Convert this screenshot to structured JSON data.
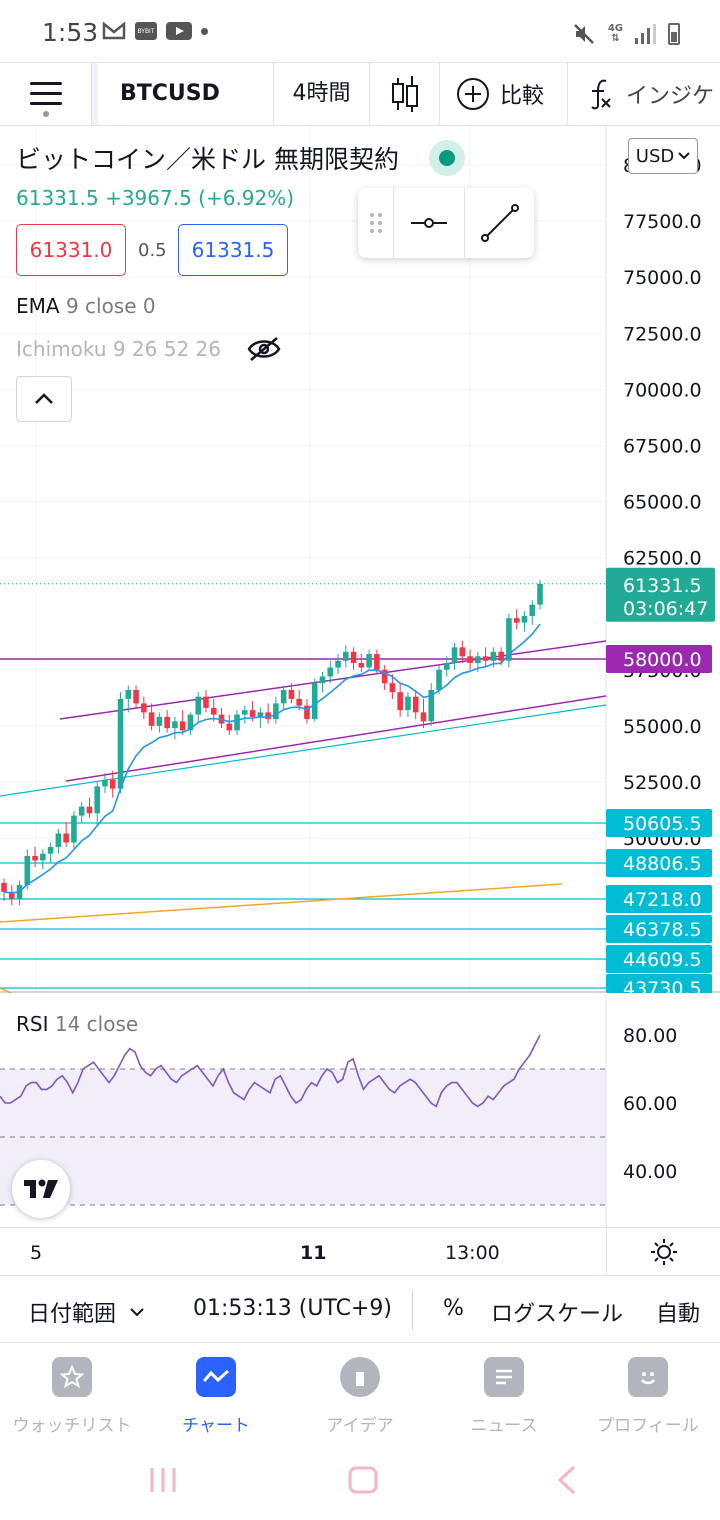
{
  "status_bar": {
    "time": "1:53",
    "net_top": "4G",
    "net_bottom": "⇅"
  },
  "toolbar": {
    "symbol": "BTCUSD",
    "interval": "4時間",
    "compare_label": "比較",
    "indicators_label": "インジケ"
  },
  "legend": {
    "title": "ビットコイン／米ドル 無期限契約",
    "price_line": "61331.5 +3967.5 (+6.92%)",
    "bid": "61331.0",
    "spread": "0.5",
    "ask": "61331.5",
    "ema_name": "EMA",
    "ema_params": "9 close 0",
    "ichimoku": "Ichimoku 9 26 52 26"
  },
  "currency_button": "USD",
  "price_axis": {
    "ticks": [
      "80000.0",
      "77500.0",
      "75000.0",
      "72500.0",
      "70000.0",
      "67500.0",
      "65000.0",
      "62500.0",
      "57500.0",
      "55000.0",
      "52500.0",
      "50000.0"
    ],
    "current_price": "61331.5",
    "countdown": "03:06:47",
    "badges": [
      {
        "value": "58000.0",
        "color": "#9c27b0"
      },
      {
        "value": "50605.5",
        "color": "#00bcd4"
      },
      {
        "value": "48806.5",
        "color": "#00bcd4"
      },
      {
        "value": "47218.0",
        "color": "#00bcd4"
      },
      {
        "value": "46378.5",
        "color": "#00bcd4"
      },
      {
        "value": "44609.5",
        "color": "#00bcd4"
      },
      {
        "value": "43730.5",
        "color": "#00bcd4"
      }
    ]
  },
  "rsi": {
    "name": "RSI",
    "params": "14 close",
    "ticks": [
      "80.00",
      "60.00",
      "40.00"
    ]
  },
  "time_axis": {
    "labels": [
      "5",
      "11",
      "13:00"
    ]
  },
  "bottom_bar": {
    "date_range": "日付範囲",
    "time": "01:53:13 (UTC+9)",
    "percent": "%",
    "log_scale": "ログスケール",
    "auto": "自動"
  },
  "tabs": [
    {
      "label": "ウォッチリスト",
      "icon": "star-icon"
    },
    {
      "label": "チャート",
      "icon": "chart-icon"
    },
    {
      "label": "アイデア",
      "icon": "lightbulb-icon"
    },
    {
      "label": "ニュース",
      "icon": "news-icon"
    },
    {
      "label": "プロフィール",
      "icon": "smile-icon"
    }
  ],
  "colors": {
    "up": "#22ab94",
    "down": "#f23645",
    "ema": "#2196f3",
    "channel": "#9c27b0",
    "support": "#00bcd4",
    "trend": "#f5a623",
    "rsi_line": "#7e57c2",
    "accent": "#2962ff"
  },
  "chart_data": {
    "type": "candlestick",
    "symbol": "BTCUSD",
    "interval": "4時間",
    "y_range": [
      43000,
      80000
    ],
    "candles_ohlc_approx": [
      [
        48000,
        48200,
        47200,
        47600
      ],
      [
        47600,
        47900,
        47000,
        47300
      ],
      [
        47300,
        48100,
        47000,
        47900
      ],
      [
        47900,
        49500,
        47700,
        49200
      ],
      [
        49200,
        49600,
        48700,
        49000
      ],
      [
        49000,
        49500,
        48600,
        49300
      ],
      [
        49300,
        49800,
        48900,
        49600
      ],
      [
        49600,
        50400,
        49300,
        50200
      ],
      [
        50200,
        50700,
        49600,
        49800
      ],
      [
        49800,
        51200,
        49500,
        51000
      ],
      [
        51000,
        51600,
        50700,
        51400
      ],
      [
        51400,
        51800,
        50900,
        51100
      ],
      [
        51100,
        52500,
        50600,
        52300
      ],
      [
        52300,
        52900,
        52000,
        52600
      ],
      [
        52600,
        53000,
        51800,
        52200
      ],
      [
        52200,
        56500,
        52000,
        56200
      ],
      [
        56200,
        56800,
        55600,
        56600
      ],
      [
        56600,
        56800,
        55800,
        56000
      ],
      [
        56000,
        56300,
        55300,
        55600
      ],
      [
        55600,
        56000,
        54800,
        55000
      ],
      [
        55000,
        55600,
        54700,
        55400
      ],
      [
        55400,
        55700,
        54700,
        54900
      ],
      [
        54900,
        55400,
        54400,
        55200
      ],
      [
        55200,
        55700,
        54600,
        54800
      ],
      [
        54800,
        55600,
        54600,
        55500
      ],
      [
        55500,
        56500,
        55200,
        56300
      ],
      [
        56300,
        56600,
        55600,
        55800
      ],
      [
        55800,
        56200,
        55200,
        55500
      ],
      [
        55500,
        55800,
        54900,
        55100
      ],
      [
        55100,
        55500,
        54600,
        54800
      ],
      [
        54800,
        55700,
        54600,
        55500
      ],
      [
        55500,
        55900,
        55100,
        55700
      ],
      [
        55700,
        56100,
        55200,
        55400
      ],
      [
        55400,
        55800,
        54900,
        55600
      ],
      [
        55600,
        56000,
        55100,
        55300
      ],
      [
        55300,
        56300,
        55100,
        56000
      ],
      [
        56000,
        56800,
        55700,
        56600
      ],
      [
        56600,
        56900,
        56000,
        56200
      ],
      [
        56200,
        56600,
        55700,
        55900
      ],
      [
        55900,
        56200,
        55100,
        55300
      ],
      [
        55300,
        57100,
        55200,
        56900
      ],
      [
        56900,
        57400,
        56500,
        57200
      ],
      [
        57200,
        57900,
        56900,
        57600
      ],
      [
        57600,
        58200,
        57300,
        57900
      ],
      [
        57900,
        58600,
        57600,
        58300
      ],
      [
        58300,
        58500,
        57500,
        57800
      ],
      [
        57800,
        58200,
        57400,
        57600
      ],
      [
        57600,
        58400,
        57500,
        58200
      ],
      [
        58200,
        58400,
        57300,
        57500
      ],
      [
        57500,
        57700,
        56600,
        56900
      ],
      [
        56900,
        57300,
        56200,
        56500
      ],
      [
        56500,
        56900,
        55400,
        55700
      ],
      [
        55700,
        56500,
        55400,
        56300
      ],
      [
        56300,
        56600,
        55300,
        55600
      ],
      [
        55600,
        56200,
        54900,
        55200
      ],
      [
        55200,
        56900,
        55000,
        56600
      ],
      [
        56600,
        57700,
        56400,
        57500
      ],
      [
        57500,
        58100,
        57200,
        57800
      ],
      [
        57800,
        58700,
        57500,
        58500
      ],
      [
        58500,
        58800,
        57800,
        58100
      ],
      [
        58100,
        58400,
        57500,
        57800
      ],
      [
        57800,
        58300,
        57400,
        58100
      ],
      [
        58100,
        58500,
        57600,
        57900
      ],
      [
        57900,
        58500,
        57600,
        58300
      ],
      [
        58300,
        58500,
        57700,
        57900
      ],
      [
        57900,
        60000,
        57600,
        59800
      ],
      [
        59800,
        60200,
        59300,
        59600
      ],
      [
        59600,
        60100,
        59200,
        59900
      ],
      [
        59900,
        60600,
        59500,
        60400
      ],
      [
        60400,
        61500,
        60200,
        61331.5
      ]
    ],
    "overlays": {
      "ema_period": 9,
      "horizontal_levels": [
        58000,
        50605.5,
        48806.5,
        47218,
        46378.5,
        44609.5,
        43730.5
      ],
      "channel_upper": [
        [
          0.08,
          55100
        ],
        [
          1.0,
          58600
        ]
      ],
      "channel_lower": [
        [
          0.09,
          52800
        ],
        [
          1.0,
          56100
        ]
      ]
    },
    "rsi_values": [
      62,
      60,
      60,
      61,
      62,
      65,
      66,
      66,
      64,
      64,
      65,
      67,
      68,
      66,
      63,
      66,
      70,
      71,
      72,
      70,
      68,
      66,
      68,
      71,
      74,
      76,
      75,
      71,
      69,
      68,
      70,
      71,
      69,
      67,
      66,
      68,
      69,
      70,
      71,
      69,
      67,
      65,
      68,
      70,
      66,
      63,
      62,
      61,
      64,
      66,
      65,
      64,
      63,
      67,
      68,
      65,
      62,
      60,
      61,
      64,
      66,
      65,
      68,
      70,
      69,
      66,
      67,
      72,
      73,
      68,
      64,
      66,
      67,
      68,
      66,
      64,
      63,
      65,
      66,
      67,
      66,
      64,
      62,
      60,
      59,
      63,
      65,
      66,
      66,
      64,
      62,
      60,
      59,
      60,
      62,
      61,
      63,
      65,
      66,
      67,
      70,
      72,
      74,
      77,
      80
    ],
    "rsi_range": [
      30,
      90
    ],
    "rsi_levels": [
      70,
      50,
      30
    ],
    "x_tick_labels": [
      "5",
      "11",
      "13:00"
    ]
  }
}
